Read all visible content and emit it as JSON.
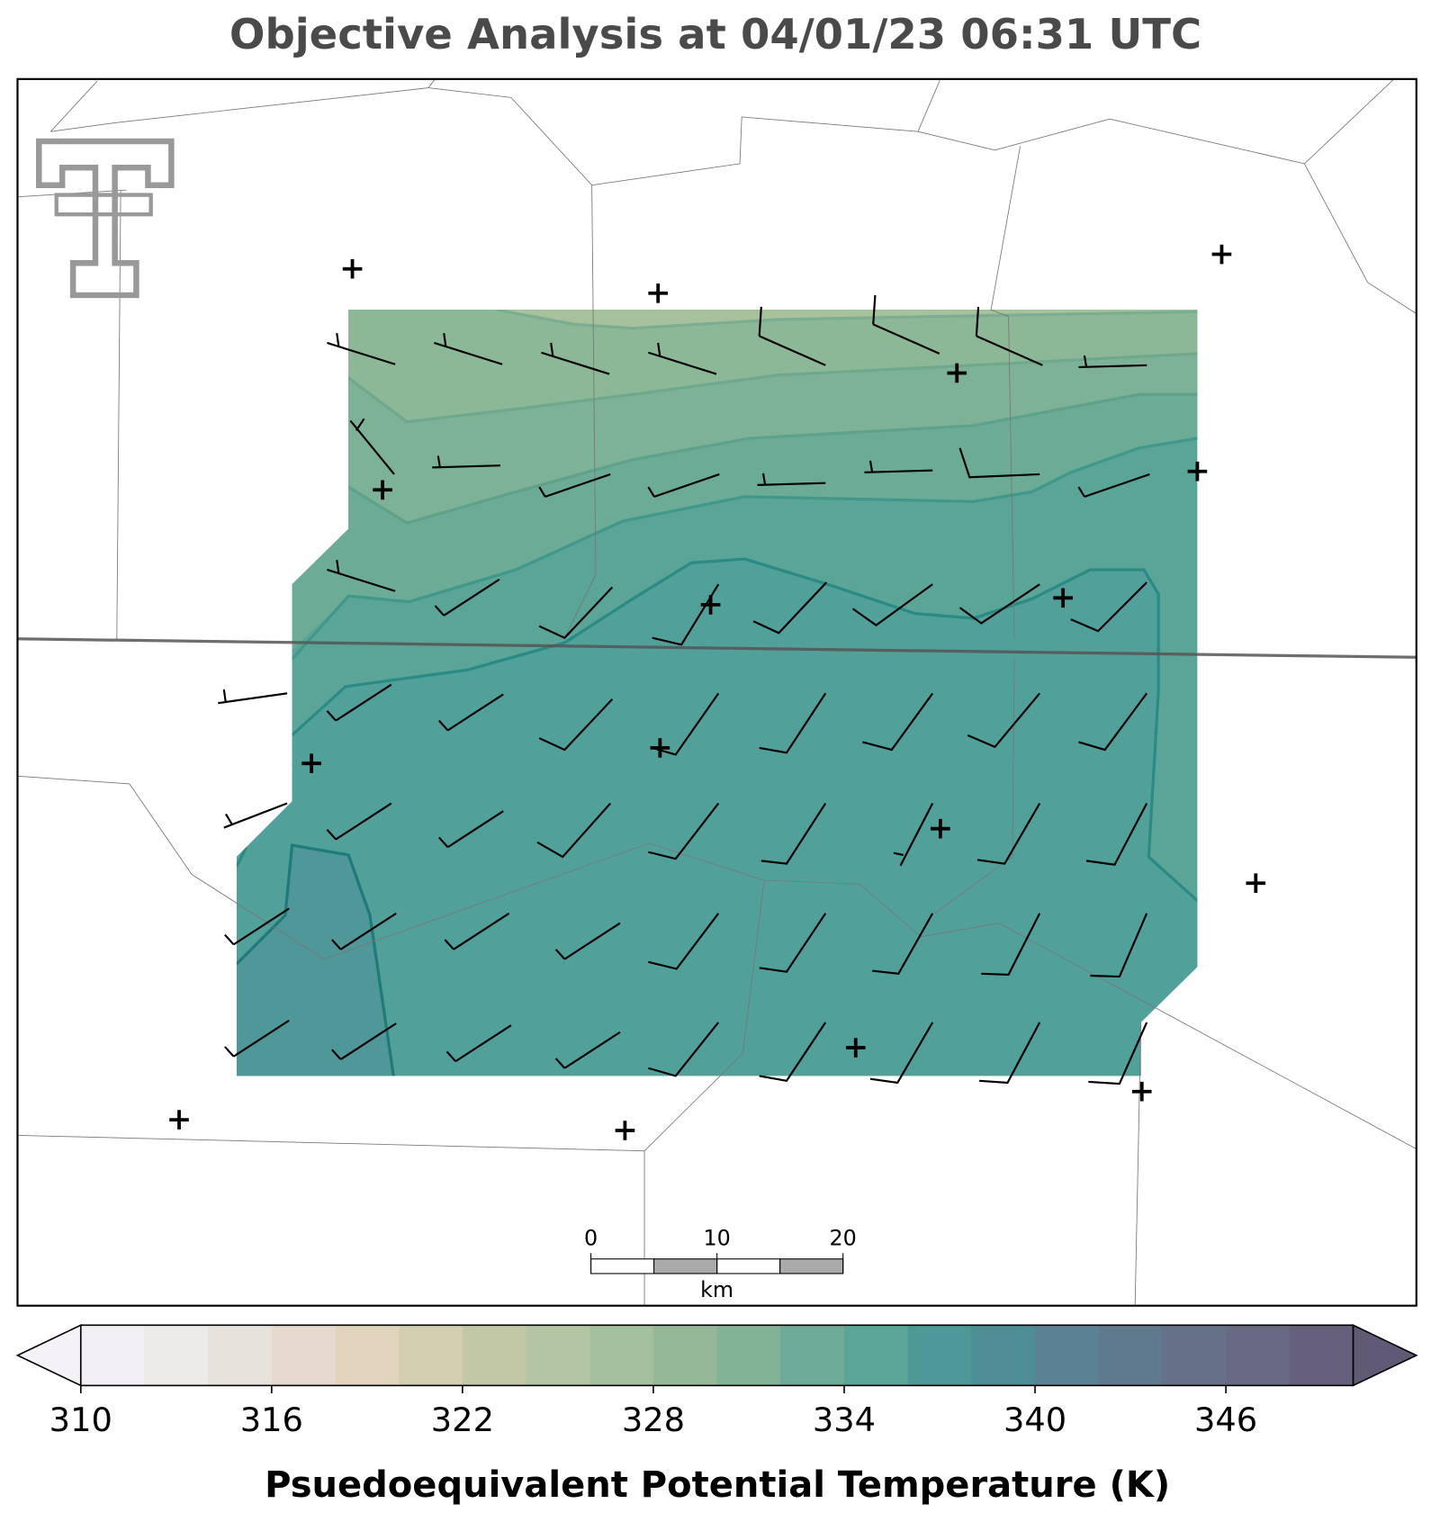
{
  "title": "Objective Analysis at 04/01/23 06:31 UTC",
  "colorbar": {
    "label": "Psuedoequivalent Potential Temperature (K)",
    "levels": [
      310,
      312,
      314,
      316,
      318,
      320,
      322,
      324,
      326,
      328,
      330,
      332,
      334,
      336,
      338,
      340,
      342,
      344,
      346,
      348,
      350
    ],
    "colors": [
      "#f1eff3",
      "#ecebea",
      "#e8e2dc",
      "#e6dace",
      "#e2d4bc",
      "#d4ceb0",
      "#c2c8a6",
      "#b3c5a2",
      "#a5c09c",
      "#95b899",
      "#82b397",
      "#6daa97",
      "#5ba598",
      "#4e9898",
      "#4d8d96",
      "#5a8294",
      "#5f7a8f",
      "#657189",
      "#686a81",
      "#67607a"
    ],
    "under_color": "#f4f2f7",
    "over_color": "#605a75",
    "ticks": [
      310,
      316,
      322,
      328,
      334,
      340,
      346
    ]
  },
  "scale_bar": {
    "ticks": [
      0,
      10,
      20
    ],
    "unit": "km"
  }
}
